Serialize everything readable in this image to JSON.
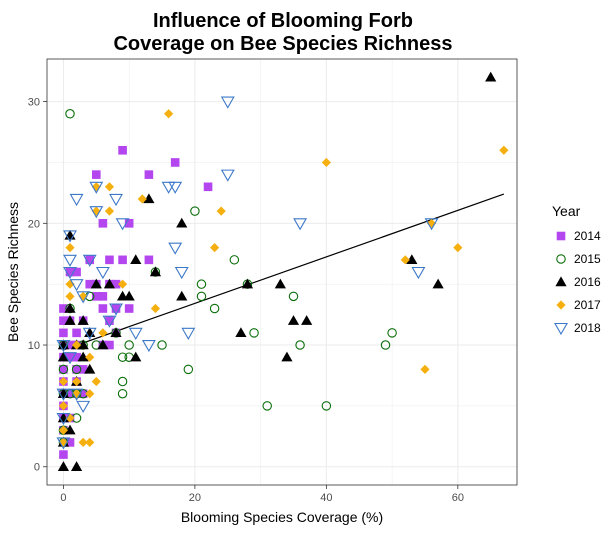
{
  "chart_data": {
    "type": "scatter",
    "title_lines": [
      "Influence of Blooming Forb",
      "Coverage on Bee Species Richness"
    ],
    "xlabel": "Blooming Species Coverage (%)",
    "ylabel": "Bee Species Richness",
    "xlim": [
      -2.5,
      69
    ],
    "ylim": [
      -1.5,
      33.5
    ],
    "x_ticks": [
      0,
      20,
      40,
      60
    ],
    "y_ticks": [
      0,
      10,
      20,
      30
    ],
    "grid": true,
    "legend_position": "right",
    "legend_title": "Year",
    "series": [
      {
        "name": "2014",
        "marker": "square",
        "color": "#b446f0",
        "filled": true,
        "points": [
          [
            0,
            1
          ],
          [
            0,
            3
          ],
          [
            0,
            4
          ],
          [
            0,
            5
          ],
          [
            0,
            6
          ],
          [
            0,
            7
          ],
          [
            0,
            8
          ],
          [
            0,
            9
          ],
          [
            0,
            10
          ],
          [
            0,
            11
          ],
          [
            0,
            12
          ],
          [
            0,
            13
          ],
          [
            1,
            2
          ],
          [
            1,
            4
          ],
          [
            1,
            6
          ],
          [
            1,
            9
          ],
          [
            1,
            10
          ],
          [
            1,
            12
          ],
          [
            1,
            16
          ],
          [
            2,
            7
          ],
          [
            2,
            8
          ],
          [
            2,
            9
          ],
          [
            2,
            10
          ],
          [
            2,
            11
          ],
          [
            2,
            16
          ],
          [
            3,
            6
          ],
          [
            3,
            8
          ],
          [
            3,
            12
          ],
          [
            4,
            15
          ],
          [
            4,
            17
          ],
          [
            5,
            14
          ],
          [
            5,
            15
          ],
          [
            5,
            24
          ],
          [
            6,
            10
          ],
          [
            6,
            13
          ],
          [
            6,
            14
          ],
          [
            6,
            20
          ],
          [
            7,
            10
          ],
          [
            7,
            12
          ],
          [
            7,
            15
          ],
          [
            7,
            17
          ],
          [
            8,
            11
          ],
          [
            8,
            13
          ],
          [
            8,
            15
          ],
          [
            9,
            17
          ],
          [
            9,
            26
          ],
          [
            10,
            13
          ],
          [
            10,
            20
          ],
          [
            13,
            24
          ],
          [
            13,
            17
          ],
          [
            17,
            25
          ],
          [
            22,
            23
          ]
        ]
      },
      {
        "name": "2015",
        "marker": "circle",
        "color": "#0a6e0a",
        "filled": false,
        "points": [
          [
            0,
            2
          ],
          [
            0,
            3
          ],
          [
            0,
            6
          ],
          [
            0,
            8
          ],
          [
            0,
            10
          ],
          [
            1,
            29
          ],
          [
            1,
            6
          ],
          [
            1,
            13
          ],
          [
            2,
            4
          ],
          [
            2,
            6
          ],
          [
            2,
            8
          ],
          [
            3,
            6
          ],
          [
            3,
            10
          ],
          [
            4,
            14
          ],
          [
            5,
            10
          ],
          [
            8,
            11
          ],
          [
            9,
            6
          ],
          [
            9,
            7
          ],
          [
            9,
            9
          ],
          [
            10,
            9
          ],
          [
            10,
            10
          ],
          [
            14,
            16
          ],
          [
            15,
            10
          ],
          [
            19,
            8
          ],
          [
            20,
            21
          ],
          [
            21,
            14
          ],
          [
            21,
            15
          ],
          [
            23,
            13
          ],
          [
            26,
            17
          ],
          [
            28,
            15
          ],
          [
            29,
            11
          ],
          [
            31,
            5
          ],
          [
            35,
            14
          ],
          [
            36,
            10
          ],
          [
            40,
            5
          ],
          [
            49,
            10
          ],
          [
            50,
            11
          ]
        ]
      },
      {
        "name": "2016",
        "marker": "triangle",
        "color": "#000000",
        "filled": true,
        "points": [
          [
            0,
            0
          ],
          [
            0,
            2
          ],
          [
            0,
            4
          ],
          [
            0,
            6
          ],
          [
            0,
            9
          ],
          [
            0,
            10
          ],
          [
            1,
            19
          ],
          [
            1,
            12
          ],
          [
            1,
            13
          ],
          [
            1,
            3
          ],
          [
            2,
            0
          ],
          [
            2,
            7
          ],
          [
            2,
            10
          ],
          [
            3,
            12
          ],
          [
            3,
            9
          ],
          [
            3,
            10
          ],
          [
            4,
            8
          ],
          [
            4,
            11
          ],
          [
            5,
            15
          ],
          [
            6,
            10
          ],
          [
            7,
            15
          ],
          [
            8,
            11
          ],
          [
            9,
            14
          ],
          [
            10,
            14
          ],
          [
            11,
            9
          ],
          [
            11,
            17
          ],
          [
            13,
            22
          ],
          [
            14,
            16
          ],
          [
            18,
            20
          ],
          [
            18,
            14
          ],
          [
            27,
            11
          ],
          [
            28,
            15
          ],
          [
            33,
            15
          ],
          [
            34,
            9
          ],
          [
            35,
            12
          ],
          [
            37,
            12
          ],
          [
            53,
            17
          ],
          [
            57,
            15
          ],
          [
            65,
            32
          ]
        ]
      },
      {
        "name": "2017",
        "marker": "diamond",
        "color": "#f5b010",
        "filled": true,
        "points": [
          [
            0,
            2
          ],
          [
            0,
            3
          ],
          [
            0,
            5
          ],
          [
            0,
            7
          ],
          [
            1,
            18
          ],
          [
            1,
            14
          ],
          [
            1,
            15
          ],
          [
            1,
            4
          ],
          [
            2,
            6
          ],
          [
            2,
            7
          ],
          [
            2,
            10
          ],
          [
            3,
            2
          ],
          [
            3,
            14
          ],
          [
            4,
            2
          ],
          [
            4,
            6
          ],
          [
            4,
            9
          ],
          [
            5,
            7
          ],
          [
            5,
            21
          ],
          [
            5,
            23
          ],
          [
            6,
            11
          ],
          [
            7,
            23
          ],
          [
            7,
            21
          ],
          [
            9,
            15
          ],
          [
            12,
            22
          ],
          [
            14,
            13
          ],
          [
            16,
            29
          ],
          [
            23,
            18
          ],
          [
            24,
            21
          ],
          [
            40,
            25
          ],
          [
            52,
            17
          ],
          [
            55,
            8
          ],
          [
            56,
            20
          ],
          [
            60,
            18
          ],
          [
            67,
            26
          ]
        ]
      },
      {
        "name": "2018",
        "marker": "triangle-down",
        "color": "#3c78c8",
        "filled": false,
        "points": [
          [
            0,
            2
          ],
          [
            0,
            4
          ],
          [
            0,
            6
          ],
          [
            0,
            10
          ],
          [
            1,
            19
          ],
          [
            1,
            17
          ],
          [
            1,
            16
          ],
          [
            1,
            9
          ],
          [
            2,
            15
          ],
          [
            2,
            22
          ],
          [
            2,
            6
          ],
          [
            3,
            14
          ],
          [
            3,
            5
          ],
          [
            4,
            11
          ],
          [
            4,
            17
          ],
          [
            5,
            23
          ],
          [
            5,
            21
          ],
          [
            6,
            16
          ],
          [
            7,
            12
          ],
          [
            8,
            13
          ],
          [
            8,
            22
          ],
          [
            9,
            20
          ],
          [
            11,
            11
          ],
          [
            13,
            10
          ],
          [
            16,
            23
          ],
          [
            17,
            23
          ],
          [
            17,
            18
          ],
          [
            18,
            16
          ],
          [
            19,
            11
          ],
          [
            25,
            30
          ],
          [
            25,
            24
          ],
          [
            36,
            20
          ],
          [
            54,
            16
          ],
          [
            56,
            20
          ]
        ]
      }
    ],
    "trend_line": {
      "x": [
        0,
        67
      ],
      "y": [
        9.6,
        22.4
      ]
    }
  }
}
